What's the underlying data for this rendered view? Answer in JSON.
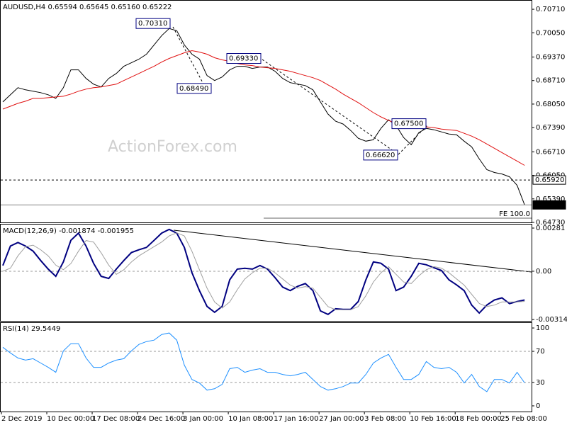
{
  "chart_data": [
    {
      "type": "line",
      "title": "AUDUSD,H4  0.65594 0.65645 0.65160 0.65222",
      "watermark": "ActionForex.com",
      "categories": [
        "2 Dec 2019",
        null,
        null,
        null,
        null,
        null,
        "10 Dec 00:00",
        null,
        null,
        null,
        null,
        null,
        "17 Dec 08:00",
        null,
        null,
        null,
        null,
        null,
        "24 Dec 16:00",
        null,
        null,
        null,
        null,
        null,
        "3 Jan 00:00",
        null,
        null,
        null,
        null,
        null,
        "10 Jan 08:00",
        null,
        null,
        null,
        null,
        null,
        "17 Jan 16:00",
        null,
        null,
        null,
        null,
        null,
        "27 Jan 00:00",
        null,
        null,
        null,
        null,
        null,
        "3 Feb 08:00",
        null,
        null,
        null,
        null,
        null,
        "10 Feb 16:00",
        null,
        null,
        null,
        null,
        null,
        "18 Feb 00:00",
        null,
        null,
        null,
        null,
        null,
        "25 Feb 08:00",
        null,
        null,
        null
      ],
      "series": [
        {
          "color": "#000000",
          "values": [
            0.6811,
            0.6831,
            0.6851,
            0.6845,
            0.6841,
            0.6837,
            0.6831,
            0.6821,
            0.6851,
            0.6901,
            0.6901,
            0.6877,
            0.6861,
            0.6853,
            0.6877,
            0.6891,
            0.6911,
            0.6921,
            0.6931,
            0.6945,
            0.6971,
            0.6997,
            0.7017,
            0.7011,
            0.6971,
            0.6945,
            0.6931,
            0.6885,
            0.6871,
            0.6881,
            0.6901,
            0.6911,
            0.6911,
            0.6905,
            0.6909,
            0.6909,
            0.6897,
            0.6877,
            0.6865,
            0.6861,
            0.6857,
            0.6845,
            0.6811,
            0.6777,
            0.6757,
            0.6749,
            0.6731,
            0.6709,
            0.6701,
            0.6705,
            0.6737,
            0.6761,
            0.6745,
            0.6711,
            0.6691,
            0.6725,
            0.6737,
            0.6733,
            0.6727,
            0.6721,
            0.6719,
            0.6701,
            0.6685,
            0.6651,
            0.6621,
            0.6613,
            0.6609,
            0.6601,
            0.6577,
            0.6522
          ]
        },
        {
          "color": "#e01010",
          "values": [
            0.6791,
            0.6799,
            0.6807,
            0.6813,
            0.6821,
            0.6821,
            0.6823,
            0.6825,
            0.6827,
            0.6833,
            0.6841,
            0.6847,
            0.6851,
            0.6853,
            0.6857,
            0.6861,
            0.6871,
            0.6881,
            0.6891,
            0.6901,
            0.6911,
            0.6923,
            0.6933,
            0.6941,
            0.6949,
            0.6955,
            0.6951,
            0.6945,
            0.6935,
            0.6929,
            0.6925,
            0.6919,
            0.6915,
            0.6913,
            0.6909,
            0.6907,
            0.6905,
            0.6901,
            0.6897,
            0.6891,
            0.6885,
            0.6879,
            0.6871,
            0.6859,
            0.6847,
            0.6833,
            0.6821,
            0.6809,
            0.6795,
            0.6781,
            0.6769,
            0.6759,
            0.6751,
            0.6747,
            0.6745,
            0.6743,
            0.6741,
            0.6739,
            0.6735,
            0.6733,
            0.6731,
            0.6723,
            0.6715,
            0.6705,
            0.6693,
            0.6681,
            0.6669,
            0.6657,
            0.6645,
            0.6633
          ]
        }
      ],
      "ylim": [
        0.6473,
        0.7095
      ],
      "yticks": [
        {
          "value": 0.7071,
          "label": "0.70710"
        },
        {
          "value": 0.7005,
          "label": "0.70050"
        },
        {
          "value": 0.6937,
          "label": "0.69370"
        },
        {
          "value": 0.6871,
          "label": "0.68710"
        },
        {
          "value": 0.6805,
          "label": "0.68050"
        },
        {
          "value": 0.6739,
          "label": "0.67390"
        },
        {
          "value": 0.6671,
          "label": "0.66710"
        },
        {
          "value": 0.6605,
          "label": "0.66050"
        },
        {
          "value": 0.6539,
          "label": "0.65390"
        },
        {
          "value": 0.6473,
          "label": "0.64730"
        }
      ],
      "annotations": [
        {
          "value": 0.7031,
          "label": "0.70310"
        },
        {
          "value": 0.6849,
          "label": "0.68490"
        },
        {
          "value": 0.6933,
          "label": "0.69330"
        },
        {
          "value": 0.675,
          "label": "0.67500"
        },
        {
          "value": 0.6662,
          "label": "0.66620"
        }
      ],
      "levels": [
        {
          "value": 0.6592,
          "label": "0.65920"
        },
        {
          "value": 0.65222,
          "label": "0.65222"
        }
      ],
      "fe_line": {
        "value": 0.6485,
        "label": "FE 100.0"
      }
    },
    {
      "type": "line",
      "title": "MACD(12,26,9) -0.001874 -0.001955",
      "series": [
        {
          "color": "#000080",
          "values": [
            0.00037,
            0.00164,
            0.00187,
            0.00164,
            0.00131,
            0.0007,
            0.00014,
            -0.00033,
            0.00061,
            0.00201,
            0.00248,
            0.00164,
            0.00052,
            -0.00033,
            -0.00047,
            0.00014,
            0.0007,
            0.00122,
            0.0014,
            0.00155,
            0.00201,
            0.00248,
            0.00272,
            0.00248,
            0.00155,
            -9e-05,
            -0.00126,
            -0.00229,
            -0.00267,
            -0.00229,
            -0.00056,
            0.00014,
            0.00019,
            0.00014,
            0.00037,
            0.00014,
            -0.00042,
            -0.00103,
            -0.00126,
            -0.00098,
            -0.0008,
            -0.00126,
            -0.00258,
            -0.00281,
            -0.00244,
            -0.00248,
            -0.00248,
            -0.00197,
            -0.00056,
            0.00061,
            0.00052,
            0.00014,
            -0.00126,
            -0.00103,
            -0.00033,
            0.00052,
            0.00042,
            0.00023,
            5e-05,
            -0.00056,
            -0.00089,
            -0.00126,
            -0.0022,
            -0.00272,
            -0.0022,
            -0.00187,
            -0.00173,
            -0.00211,
            -0.00197,
            -0.00187
          ]
        },
        {
          "color": "#a0a0a0",
          "values": [
            0.0,
            0.0002,
            0.001,
            0.0016,
            0.0017,
            0.0014,
            0.001,
            0.0004,
            0.0001,
            0.0005,
            0.0013,
            0.002,
            0.0019,
            0.0012,
            0.0004,
            -0.0002,
            0.0001,
            0.0006,
            0.001,
            0.0013,
            0.0016,
            0.0019,
            0.0023,
            0.0025,
            0.0023,
            0.0013,
            0.0001,
            -0.0011,
            -0.002,
            -0.0024,
            -0.002,
            -0.0012,
            -0.0005,
            -0.0001,
            0.0002,
            0.0002,
            -0.0001,
            -0.0005,
            -0.0009,
            -0.0011,
            -0.001,
            -0.0011,
            -0.0017,
            -0.0023,
            -0.0025,
            -0.0025,
            -0.0025,
            -0.0023,
            -0.0016,
            -0.0007,
            -0.0001,
            0.0003,
            -0.0002,
            -0.0007,
            -0.0008,
            -0.0003,
            0.0001,
            0.0003,
            0.0002,
            -0.0001,
            -0.0005,
            -0.0009,
            -0.0015,
            -0.0021,
            -0.0023,
            -0.0022,
            -0.002,
            -0.002,
            -0.002,
            -0.00196
          ]
        }
      ],
      "ylim": [
        -0.00323,
        0.00304
      ],
      "yticks": [
        0.00281,
        {
          "value": 0,
          "label": "0.00"
        },
        -0.003141
      ]
    },
    {
      "type": "line",
      "title": "RSI(14) 29.5449",
      "series": [
        {
          "color": "#1e90ff",
          "values": [
            75.2,
            67.9,
            61.5,
            58.7,
            60.6,
            55.0,
            49.5,
            43.1,
            70.6,
            79.8,
            79.8,
            61.5,
            49.5,
            49.5,
            55.0,
            58.7,
            60.6,
            70.6,
            78.9,
            82.6,
            84.4,
            91.7,
            93.6,
            84.4,
            52.3,
            33.9,
            29.4,
            20.2,
            22.0,
            27.5,
            47.7,
            49.5,
            43.1,
            45.9,
            47.7,
            43.1,
            43.1,
            40.4,
            38.5,
            40.4,
            43.1,
            33.9,
            24.8,
            20.2,
            22.0,
            24.8,
            29.4,
            29.4,
            40.4,
            55.0,
            61.5,
            66.1,
            49.5,
            33.9,
            33.9,
            40.4,
            56.9,
            49.5,
            47.7,
            49.5,
            43.1,
            29.4,
            40.4,
            24.8,
            18.3,
            33.9,
            33.9,
            29.4,
            43.1,
            29.5
          ]
        }
      ],
      "ylim": [
        -7.3,
        106.4
      ],
      "yticks": [
        100,
        70,
        30,
        0
      ]
    }
  ]
}
